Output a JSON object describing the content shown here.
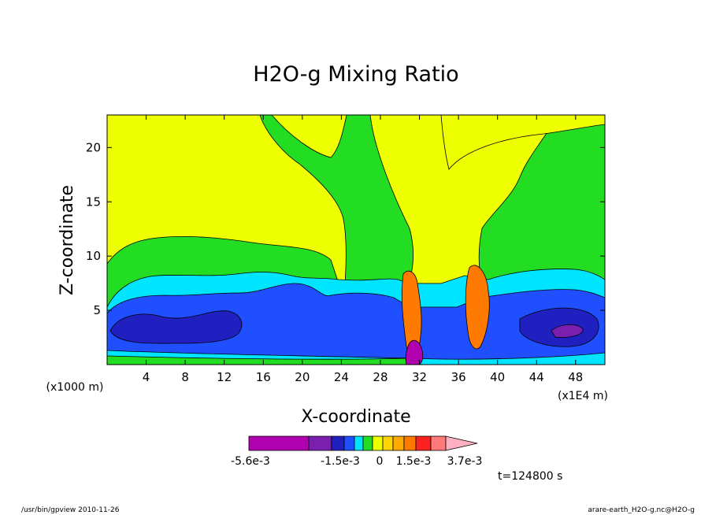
{
  "chart_data": {
    "type": "heatmap",
    "title": "H2O-g Mixing Ratio",
    "xlabel": "X-coordinate",
    "ylabel": "Z-coordinate",
    "x_unit": "(x1E4 m)",
    "y_unit": "(x1000 m)",
    "x_ticks": [
      4,
      8,
      12,
      16,
      20,
      24,
      28,
      32,
      36,
      40,
      44,
      48
    ],
    "y_ticks": [
      5,
      10,
      15,
      20
    ],
    "xlim": [
      0,
      51
    ],
    "ylim": [
      0,
      23
    ],
    "colorbar": {
      "labels": [
        "-5.6e-3",
        "-1.5e-3",
        "0",
        "1.5e-3",
        "3.7e-3"
      ],
      "colors": [
        "#b000b0",
        "#7a1fb0",
        "#2020c0",
        "#1f4fff",
        "#00e5ff",
        "#22dd22",
        "#eeff00",
        "#ffd400",
        "#ffaa00",
        "#ff7a00",
        "#ff2020",
        "#ff7a7a",
        "#ffb0c0"
      ]
    },
    "time_label": "t=124800 s",
    "footer_left": "/usr/bin/gpview  2010-11-26",
    "footer_right": "arare-earth_H2O-g.nc@H2O-g"
  }
}
